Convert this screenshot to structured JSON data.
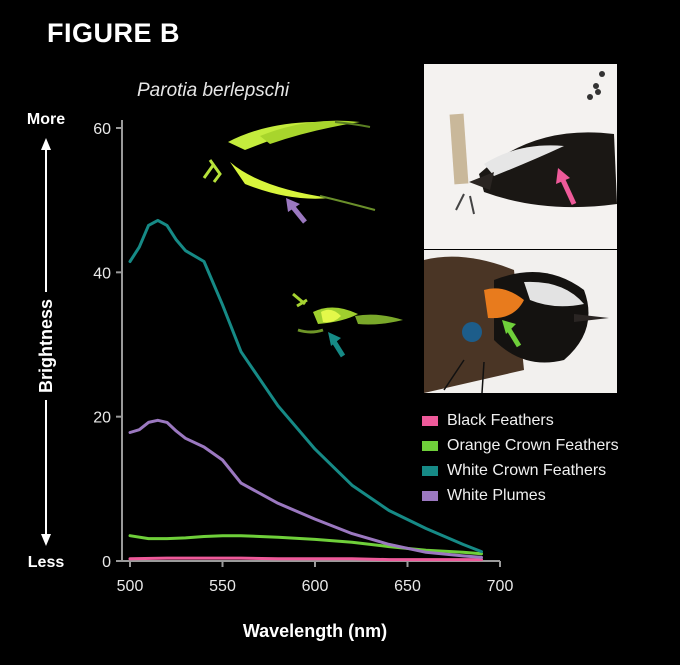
{
  "figure_label": "FIGURE B",
  "species": "Parotia berlepschi",
  "colors": {
    "black_feathers": "#ee5a9a",
    "orange_crown": "#6fcf3a",
    "white_crown": "#168a86",
    "white_plumes": "#9b78c0"
  },
  "photos": [
    {
      "name": "uv-fluorescence-plumes-photo",
      "arrow_color": "#9b78c0"
    },
    {
      "name": "uv-fluorescence-crown-photo",
      "arrow_color": "#168a86"
    },
    {
      "name": "specimen-back-photo",
      "arrow_color": "#ee5a9a"
    },
    {
      "name": "specimen-crown-photo",
      "arrow_color": "#6fcf3a"
    }
  ],
  "chart_data": {
    "type": "line",
    "title": "",
    "xlabel": "Wavelength (nm)",
    "ylabel": "Brightness",
    "ylabel_top": "More",
    "ylabel_bottom": "Less",
    "xlim": [
      500,
      700
    ],
    "ylim": [
      0,
      60
    ],
    "xticks": [
      500,
      550,
      600,
      650,
      700
    ],
    "yticks": [
      0,
      20,
      40,
      60
    ],
    "grid": false,
    "legend_position": "bottom-right",
    "series": [
      {
        "name": "Black Feathers",
        "color": "#ee5a9a",
        "x": [
          500,
          520,
          540,
          560,
          580,
          600,
          620,
          640,
          660,
          680,
          690
        ],
        "y": [
          0.3,
          0.4,
          0.4,
          0.4,
          0.3,
          0.3,
          0.3,
          0.2,
          0.2,
          0.2,
          0.2
        ]
      },
      {
        "name": "Orange Crown Feathers",
        "color": "#6fcf3a",
        "x": [
          500,
          510,
          520,
          530,
          540,
          550,
          560,
          580,
          600,
          620,
          640,
          660,
          680,
          690
        ],
        "y": [
          3.5,
          3.1,
          3.1,
          3.2,
          3.4,
          3.5,
          3.5,
          3.3,
          3.0,
          2.6,
          2.0,
          1.5,
          1.2,
          1.0
        ]
      },
      {
        "name": "White Crown Feathers",
        "color": "#168a86",
        "x": [
          500,
          505,
          510,
          515,
          520,
          525,
          530,
          540,
          550,
          560,
          580,
          600,
          620,
          640,
          660,
          680,
          690
        ],
        "y": [
          41.5,
          43.5,
          46.5,
          47.2,
          46.5,
          44.5,
          43.0,
          41.5,
          35.5,
          29.0,
          21.5,
          15.5,
          10.5,
          7.0,
          4.5,
          2.3,
          1.3
        ]
      },
      {
        "name": "White Plumes",
        "color": "#9b78c0",
        "x": [
          500,
          505,
          510,
          515,
          520,
          525,
          530,
          540,
          550,
          560,
          580,
          600,
          620,
          640,
          660,
          680,
          690
        ],
        "y": [
          17.8,
          18.2,
          19.2,
          19.5,
          19.2,
          18.0,
          17.0,
          15.8,
          14.0,
          10.8,
          8.0,
          5.8,
          3.8,
          2.3,
          1.2,
          0.7,
          0.5
        ]
      }
    ]
  }
}
